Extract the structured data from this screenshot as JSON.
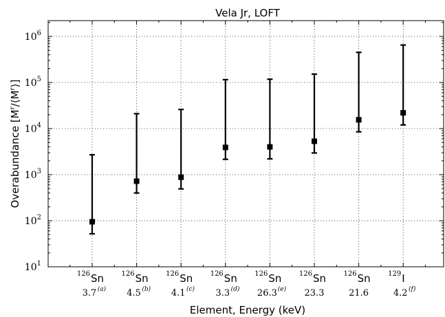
{
  "chart_data": {
    "type": "scatter",
    "title": "Vela Jr, LOFT",
    "xlabel": "Element, Energy (keV)",
    "ylabel": "Overabundance [M",
    "ylabel_sup_a": "r",
    "ylabel_mid": "/⟨M",
    "ylabel_sup_b": "r",
    "ylabel_end": "⟩]",
    "y_scale": "log",
    "ylim": [
      10,
      2200000
    ],
    "y_ticks": [
      {
        "base": "10",
        "exp": "1",
        "value": 10
      },
      {
        "base": "10",
        "exp": "2",
        "value": 100
      },
      {
        "base": "10",
        "exp": "3",
        "value": 1000
      },
      {
        "base": "10",
        "exp": "4",
        "value": 10000
      },
      {
        "base": "10",
        "exp": "5",
        "value": 100000
      },
      {
        "base": "10",
        "exp": "6",
        "value": 1000000
      }
    ],
    "grid": true,
    "categories": [
      {
        "isotope": "126",
        "element": "Sn",
        "energy": "3.7",
        "note": "(a)"
      },
      {
        "isotope": "126",
        "element": "Sn",
        "energy": "4.5",
        "note": "(b)"
      },
      {
        "isotope": "126",
        "element": "Sn",
        "energy": "4.1",
        "note": "(c)"
      },
      {
        "isotope": "126",
        "element": "Sn",
        "energy": "3.3",
        "note": "(d)"
      },
      {
        "isotope": "126",
        "element": "Sn",
        "energy": "26.3",
        "note": "(e)"
      },
      {
        "isotope": "126",
        "element": "Sn",
        "energy": "23.3",
        "note": ""
      },
      {
        "isotope": "126",
        "element": "Sn",
        "energy": "21.6",
        "note": ""
      },
      {
        "isotope": "129",
        "element": "I",
        "energy": "4.2",
        "note": "(f)"
      }
    ],
    "values": [
      95,
      720,
      880,
      3900,
      4000,
      5300,
      15500,
      22000
    ],
    "lower": [
      52,
      400,
      490,
      2150,
      2200,
      2950,
      8500,
      12000
    ],
    "upper": [
      2700,
      21000,
      26000,
      115000,
      118000,
      152000,
      450000,
      650000
    ]
  }
}
